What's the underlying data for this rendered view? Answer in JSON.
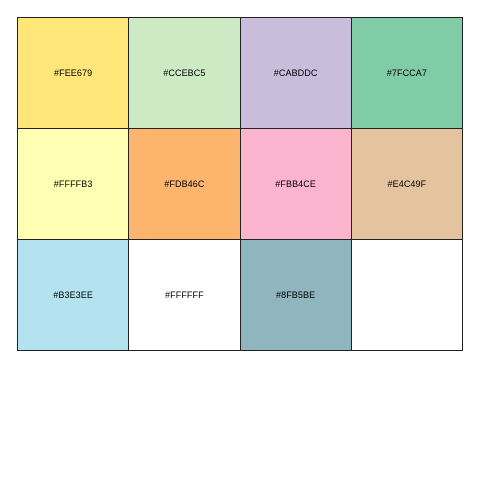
{
  "chart_data": {
    "type": "table",
    "title": "",
    "columns": 4,
    "rows": 3,
    "swatches": [
      {
        "label": "#FEE679",
        "color": "#FEE679"
      },
      {
        "label": "#CCEBC5",
        "color": "#CCEBC5"
      },
      {
        "label": "#CABDDC",
        "color": "#CABDDC"
      },
      {
        "label": "#7FCCA7",
        "color": "#7FCCA7"
      },
      {
        "label": "#FFFFB3",
        "color": "#FFFFB3"
      },
      {
        "label": "#FDB46C",
        "color": "#FDB46C"
      },
      {
        "label": "#FBB4CE",
        "color": "#FBB4CE"
      },
      {
        "label": "#E4C49F",
        "color": "#E4C49F"
      },
      {
        "label": "#B3E3EE",
        "color": "#B3E3EE"
      },
      {
        "label": "#FFFFFF",
        "color": "#FFFFFF"
      },
      {
        "label": "#8FB5BE",
        "color": "#8FB5BE"
      },
      {
        "label": "",
        "color": "#FFFFFF"
      }
    ]
  }
}
